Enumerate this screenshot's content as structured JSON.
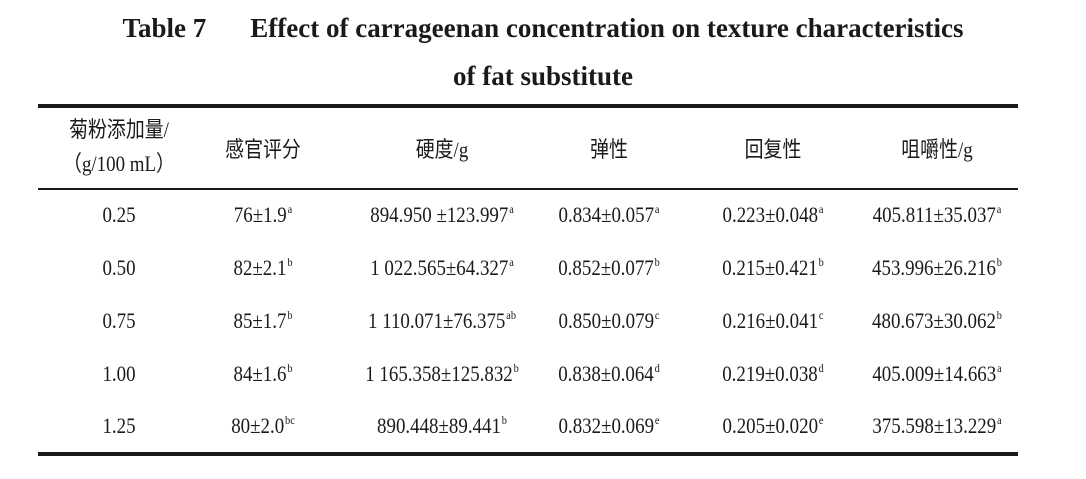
{
  "caption": {
    "label": "Table 7",
    "title_line1": "Effect of carrageenan concentration on texture characteristics",
    "title_line2": "of fat substitute"
  },
  "table": {
    "headers": [
      {
        "line1": "菊粉添加量/",
        "line2": "（g/100 mL）"
      },
      {
        "line1": "感官评分"
      },
      {
        "line1": "硬度/g"
      },
      {
        "line1": "弹性"
      },
      {
        "line1": "回复性"
      },
      {
        "line1": "咀嚼性/g"
      }
    ],
    "rows": [
      [
        {
          "v": "0.25",
          "s": ""
        },
        {
          "v": "76±1.9",
          "s": "a"
        },
        {
          "v": "894.950 ±123.997",
          "s": "a"
        },
        {
          "v": "0.834±0.057",
          "s": "a"
        },
        {
          "v": "0.223±0.048",
          "s": "a"
        },
        {
          "v": "405.811±35.037",
          "s": "a"
        }
      ],
      [
        {
          "v": "0.50",
          "s": ""
        },
        {
          "v": "82±2.1",
          "s": "b"
        },
        {
          "v": "1 022.565±64.327",
          "s": "a"
        },
        {
          "v": "0.852±0.077",
          "s": "b"
        },
        {
          "v": "0.215±0.421",
          "s": "b"
        },
        {
          "v": "453.996±26.216",
          "s": "b"
        }
      ],
      [
        {
          "v": "0.75",
          "s": ""
        },
        {
          "v": "85±1.7",
          "s": "b"
        },
        {
          "v": "1 110.071±76.375",
          "s": "ab"
        },
        {
          "v": "0.850±0.079",
          "s": "c"
        },
        {
          "v": "0.216±0.041",
          "s": "c"
        },
        {
          "v": "480.673±30.062",
          "s": "b"
        }
      ],
      [
        {
          "v": "1.00",
          "s": ""
        },
        {
          "v": "84±1.6",
          "s": "b"
        },
        {
          "v": "1 165.358±125.832",
          "s": "b"
        },
        {
          "v": "0.838±0.064",
          "s": "d"
        },
        {
          "v": "0.219±0.038",
          "s": "d"
        },
        {
          "v": "405.009±14.663",
          "s": "a"
        }
      ],
      [
        {
          "v": "1.25",
          "s": ""
        },
        {
          "v": "80±2.0",
          "s": "bc"
        },
        {
          "v": "890.448±89.441",
          "s": "b"
        },
        {
          "v": "0.832±0.069",
          "s": "e"
        },
        {
          "v": "0.205±0.020",
          "s": "e"
        },
        {
          "v": "375.598±13.229",
          "s": "a"
        }
      ]
    ]
  }
}
